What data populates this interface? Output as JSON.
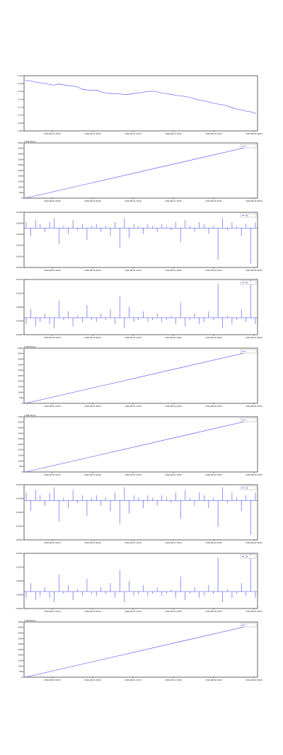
{
  "chart_data": [
    {
      "type": "line",
      "xlabels": [
        "2016-08-01 00:00",
        "2016-08-01 06:00",
        "2016-08-01 12:00",
        "2016-08-01 18:00",
        "2016-08-02 00:00",
        "2016-08-02 06:00"
      ],
      "ylabels": [
        "1.120",
        "1.118",
        "1.116",
        "1.114",
        "1.112",
        "1.110",
        "1.108",
        "1.106"
      ],
      "ylim": [
        1.106,
        1.12
      ],
      "series": [
        {
          "name": "",
          "values": [
            1.1188,
            1.1187,
            1.1184,
            1.1182,
            1.1181,
            1.1178,
            1.1176,
            1.1179,
            1.1177,
            1.1175,
            1.1174,
            1.1172,
            1.1166,
            1.1164,
            1.1163,
            1.1164,
            1.1159,
            1.1156,
            1.1155,
            1.1154,
            1.1154,
            1.1152,
            1.1153,
            1.1155,
            1.1156,
            1.1158,
            1.116,
            1.1161,
            1.1159,
            1.1156,
            1.1154,
            1.1153,
            1.115,
            1.1149,
            1.1147,
            1.1145,
            1.1141,
            1.1138,
            1.1136,
            1.1133,
            1.113,
            1.1128,
            1.1126,
            1.1123,
            1.1118,
            1.1115,
            1.1113,
            1.111,
            1.1108,
            1.1104
          ]
        }
      ]
    },
    {
      "type": "line",
      "offset": "1.46974e+9",
      "xlabels": [
        "2016-08-01 00:00",
        "2016-08-01 06:00",
        "2016-08-01 12:00",
        "2016-08-01 18:00",
        "2016-08-02 00:00",
        "2016-08-02 06:00"
      ],
      "ylabels": [
        "0",
        "500",
        "1000",
        "1500",
        "2000",
        "2500",
        "3000",
        "3500",
        "4000",
        "4500",
        "5000"
      ],
      "ylim": [
        0,
        5000
      ],
      "series": [
        {
          "name": "t",
          "values": [
            0,
            4800
          ]
        }
      ]
    },
    {
      "type": "bar",
      "xlabels": [
        "2016-08-01 00:00",
        "2016-08-01 06:00",
        "2016-08-01 12:00",
        "2016-08-01 18:00",
        "2016-08-02 00:00",
        "2016-08-02 06:00"
      ],
      "ylabels": [
        "0.0005",
        "0.0000",
        "-0.0005",
        "-0.0010",
        "-0.0015",
        "-0.0020"
      ],
      "ylim": [
        -0.002,
        0.0008
      ],
      "series": [
        {
          "name": "dt",
          "values": [
            0.0003,
            -0.0004,
            0.0004,
            0.0002,
            -0.0002,
            0.0003,
            0.0005,
            -0.0008,
            0.0001,
            -0.0003,
            0.0004,
            -0.0001,
            0.0002,
            -0.0006,
            0.0001,
            0.0002,
            -0.0002,
            0.0001,
            -0.0004,
            0.0003,
            -0.001,
            0.0005,
            -0.0005,
            0.0002,
            0.0001,
            -0.0003,
            0.0002,
            0.0001,
            -0.0002,
            0.0002,
            0.0001,
            -0.0001,
            0.0003,
            -0.0007,
            0.0004,
            0.0001,
            -0.0002,
            0.0003,
            0.0002,
            -0.0003,
            0.0001,
            -0.0016,
            0.0005,
            -0.0001,
            0.0003,
            0.0001,
            -0.0004,
            0.0002,
            -0.0018,
            0.0003
          ]
        }
      ]
    },
    {
      "type": "bar",
      "xlabels": [
        "2016-08-01 00:00",
        "2016-08-01 06:00",
        "2016-08-01 12:00",
        "2016-08-01 18:00",
        "2016-08-02 00:00",
        "2016-08-02 06:00"
      ],
      "ylabels": [
        "0.0015",
        "0.0010",
        "0.0005",
        "0.0000",
        "-0.0005"
      ],
      "ylim": [
        -0.0008,
        0.0018
      ],
      "series": [
        {
          "name": "dt",
          "values": [
            -0.0003,
            0.0004,
            -0.0004,
            -0.0002,
            0.0002,
            -0.0003,
            -0.0005,
            0.0008,
            -0.0001,
            0.0003,
            -0.0004,
            0.0001,
            -0.0002,
            0.0006,
            -0.0001,
            -0.0002,
            0.0002,
            -0.0001,
            0.0004,
            -0.0003,
            0.001,
            -0.0005,
            0.0005,
            -0.0002,
            -0.0001,
            0.0003,
            -0.0002,
            -0.0001,
            0.0002,
            -0.0002,
            -0.0001,
            0.0001,
            -0.0003,
            0.0007,
            -0.0004,
            -0.0001,
            0.0002,
            -0.0003,
            -0.0002,
            0.0003,
            -0.0001,
            0.0016,
            -0.0005,
            0.0001,
            -0.0003,
            -0.0001,
            0.0004,
            -0.0002,
            0.0018,
            -0.0003
          ]
        }
      ]
    },
    {
      "type": "line",
      "offset": "1.46974e+9",
      "xlabels": [
        "2016-08-01 00:00",
        "2016-08-01 06:00",
        "2016-08-01 12:00",
        "2016-08-01 18:00",
        "2016-08-02 00:00",
        "2016-08-02 06:00"
      ],
      "ylabels": [
        "0",
        "500",
        "1000",
        "1500",
        "2000",
        "2500",
        "3000",
        "3500",
        "4000",
        "4500",
        "5000"
      ],
      "ylim": [
        0,
        5000
      ],
      "series": [
        {
          "name": "t",
          "values": [
            0,
            4800
          ]
        }
      ]
    },
    {
      "type": "line",
      "offset": "1.46974e+9",
      "xlabels": [
        "2016-08-01 00:00",
        "2016-08-01 06:00",
        "2016-08-01 12:00",
        "2016-08-01 18:00",
        "2016-08-02 00:00",
        "2016-08-02 06:00"
      ],
      "ylabels": [
        "0",
        "500",
        "1000",
        "1500",
        "2000",
        "2500",
        "3000",
        "3500",
        "4000",
        "4500",
        "5000"
      ],
      "ylim": [
        0,
        5000
      ],
      "series": [
        {
          "name": "t",
          "values": [
            0,
            4800
          ]
        }
      ]
    },
    {
      "type": "bar",
      "xlabels": [
        "2016-08-01 00:00",
        "2016-08-01 06:00",
        "2016-08-01 12:00",
        "2016-08-01 18:00",
        "2016-08-02 00:00",
        "2016-08-02 06:00"
      ],
      "ylabels": [
        "0.0005",
        "0.0000",
        "-0.0005",
        "-0.0010",
        "-0.0015"
      ],
      "ylim": [
        -0.0015,
        0.0006
      ],
      "series": [
        {
          "name": "dt",
          "values": [
            0.0003,
            -0.0004,
            0.0004,
            0.0002,
            -0.0002,
            0.0003,
            0.0005,
            -0.0008,
            0.0001,
            -0.0003,
            0.0004,
            -0.0001,
            0.0002,
            -0.0006,
            0.0001,
            0.0002,
            -0.0002,
            0.0001,
            -0.0004,
            0.0003,
            -0.0009,
            0.0005,
            -0.0005,
            0.0002,
            0.0001,
            -0.0003,
            0.0002,
            0.0001,
            -0.0002,
            0.0002,
            0.0001,
            -0.0001,
            0.0003,
            -0.0007,
            0.0004,
            0.0001,
            -0.0002,
            0.0003,
            0.0002,
            -0.0003,
            0.0001,
            -0.001,
            0.0005,
            -0.0001,
            0.0003,
            0.0001,
            -0.0004,
            0.0002,
            -0.0013,
            0.0003
          ]
        }
      ]
    },
    {
      "type": "bar",
      "xlabels": [
        "2016-08-01 00:00",
        "2016-08-01 06:00",
        "2016-08-01 12:00",
        "2016-08-01 18:00",
        "2016-08-02 00:00",
        "2016-08-02 06:00"
      ],
      "ylabels": [
        "0.0015",
        "0.0010",
        "0.0005",
        "0.0000",
        "-0.0005"
      ],
      "ylim": [
        -0.0008,
        0.0018
      ],
      "series": [
        {
          "name": "dt",
          "values": [
            -0.0003,
            0.0004,
            -0.0004,
            -0.0002,
            0.0002,
            -0.0003,
            -0.0005,
            0.0008,
            -0.0001,
            0.0003,
            -0.0004,
            0.0001,
            -0.0002,
            0.0006,
            -0.0001,
            -0.0002,
            0.0002,
            -0.0001,
            0.0004,
            -0.0003,
            0.001,
            -0.0005,
            0.0005,
            -0.0002,
            -0.0001,
            0.0003,
            -0.0002,
            -0.0001,
            0.0002,
            -0.0002,
            -0.0001,
            0.0001,
            -0.0003,
            0.0007,
            -0.0004,
            -0.0001,
            0.0002,
            -0.0003,
            -0.0002,
            0.0003,
            -0.0001,
            0.0016,
            -0.0005,
            0.0001,
            -0.0003,
            -0.0001,
            0.0004,
            -0.0002,
            0.0018,
            -0.0003
          ]
        }
      ]
    },
    {
      "type": "line",
      "offset": "1.46974e+9",
      "xlabels": [
        "2016-08-01 00:00",
        "2016-08-01 06:00",
        "2016-08-01 12:00",
        "2016-08-01 18:00",
        "2016-08-02 00:00",
        "2016-08-02 06:00"
      ],
      "ylabels": [
        "0",
        "500",
        "1000",
        "1500",
        "2000",
        "2500",
        "3000",
        "3500",
        "4000",
        "4500",
        "5000"
      ],
      "ylim": [
        0,
        5000
      ],
      "series": [
        {
          "name": "t",
          "values": [
            0,
            4800
          ]
        }
      ]
    }
  ]
}
